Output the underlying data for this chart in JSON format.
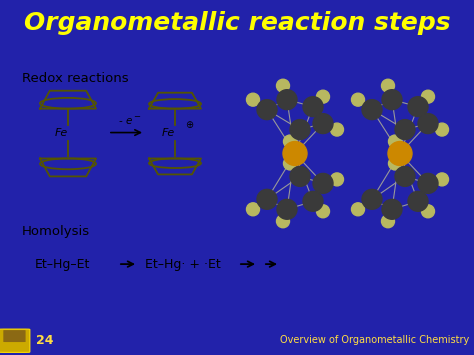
{
  "title": "Organometallic reaction steps",
  "title_color": "#FFFF00",
  "header_bg_left": "#4444CC",
  "header_bg_right": "#2222AA",
  "footer_bg": "#2222AA",
  "body_bg": "#F5EDAA",
  "slide_number": "24",
  "footer_right": "Overview of Organometallic Chemistry",
  "footer_text_color": "#FFDD44",
  "redox_label": "Redox reactions",
  "homolysis_label": "Homolysis",
  "fe_label": "Fe",
  "label_color": "#000000",
  "dark_ball": "#3A3A3A",
  "light_ball": "#B8B860",
  "gold_ball": "#CC8800",
  "connector_color": "#999999",
  "ferrocene_color": "#555500",
  "body_font_size": 10
}
